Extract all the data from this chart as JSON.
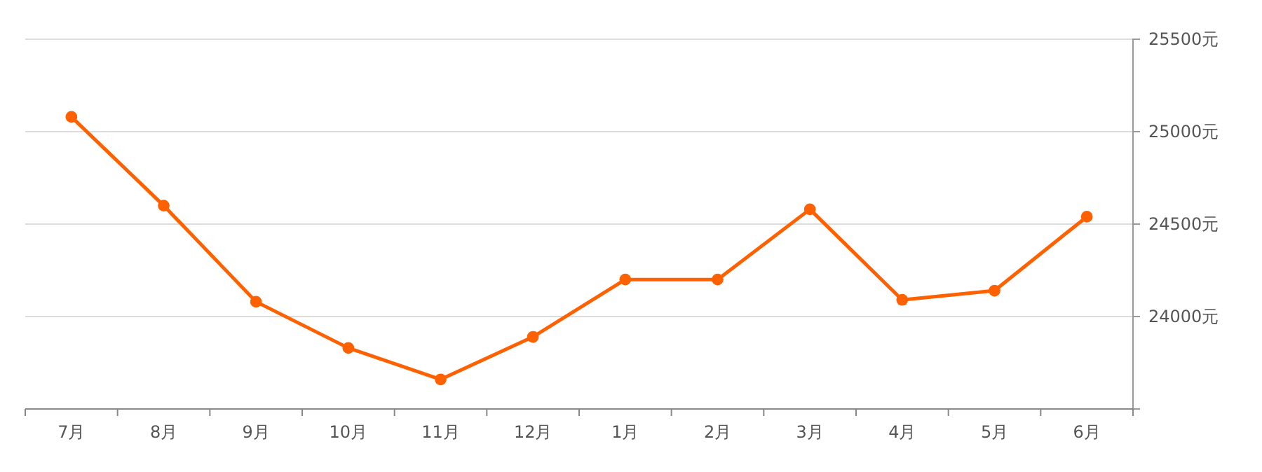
{
  "chart_data": {
    "type": "line",
    "categories": [
      "7月",
      "8月",
      "9月",
      "10月",
      "11月",
      "12月",
      "1月",
      "2月",
      "3月",
      "4月",
      "5月",
      "6月"
    ],
    "series": [
      {
        "color": "#ff6000",
        "values": [
          25080,
          24600,
          24080,
          23830,
          23660,
          23890,
          24200,
          24200,
          24580,
          24090,
          24140,
          24540
        ]
      }
    ],
    "ylim": [
      23500,
      25500
    ],
    "yticks": [
      {
        "value": 24000,
        "label": "24000元"
      },
      {
        "value": 24500,
        "label": "24500元"
      },
      {
        "value": 25000,
        "label": "25000元"
      },
      {
        "value": 25500,
        "label": "25500元"
      }
    ],
    "grid": "y",
    "marker": "circle",
    "line_style": "solid"
  }
}
